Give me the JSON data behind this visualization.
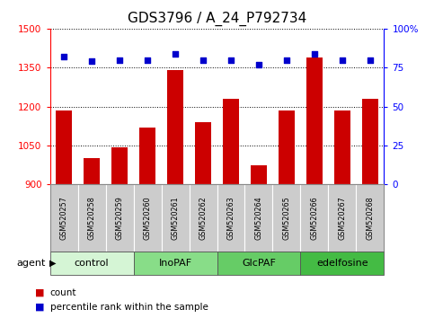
{
  "title": "GDS3796 / A_24_P792734",
  "samples": [
    "GSM520257",
    "GSM520258",
    "GSM520259",
    "GSM520260",
    "GSM520261",
    "GSM520262",
    "GSM520263",
    "GSM520264",
    "GSM520265",
    "GSM520266",
    "GSM520267",
    "GSM520268"
  ],
  "counts": [
    1185,
    1000,
    1043,
    1120,
    1340,
    1140,
    1230,
    975,
    1185,
    1390,
    1185,
    1230
  ],
  "percentiles": [
    82,
    79,
    80,
    80,
    84,
    80,
    80,
    77,
    80,
    84,
    80,
    80
  ],
  "groups": [
    {
      "label": "control",
      "start": 0,
      "end": 3,
      "color": "#d5f5d5"
    },
    {
      "label": "InoPAF",
      "start": 3,
      "end": 6,
      "color": "#88dd88"
    },
    {
      "label": "GlcPAF",
      "start": 6,
      "end": 9,
      "color": "#66cc66"
    },
    {
      "label": "edelfosine",
      "start": 9,
      "end": 12,
      "color": "#44bb44"
    }
  ],
  "ylim_left": [
    900,
    1500
  ],
  "ylim_right": [
    0,
    100
  ],
  "yticks_left": [
    900,
    1050,
    1200,
    1350,
    1500
  ],
  "yticks_right": [
    0,
    25,
    50,
    75,
    100
  ],
  "bar_color": "#cc0000",
  "dot_color": "#0000cc",
  "bar_baseline": 900,
  "plot_bg_color": "#ffffff",
  "sample_bg_color": "#cccccc",
  "grid_color": "#000000",
  "title_fontsize": 11,
  "tick_fontsize": 7.5,
  "label_fontsize": 8
}
